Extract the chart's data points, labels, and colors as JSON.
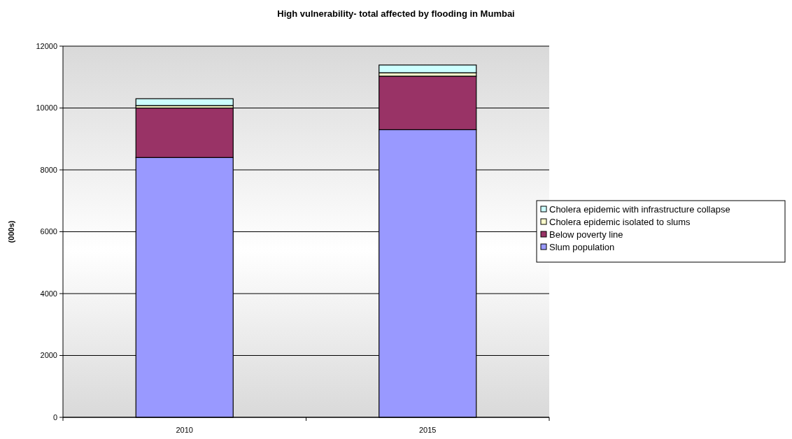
{
  "chart_data": {
    "type": "bar",
    "title": "High vulnerability-  total affected by flooding in Mumbai",
    "ylabel": "(000s)",
    "categories": [
      "2010",
      "2015"
    ],
    "stacked": true,
    "series": [
      {
        "name": "Slum population",
        "color": "#9999ff",
        "values": [
          8400,
          9300
        ]
      },
      {
        "name": "Below poverty line",
        "color": "#993366",
        "values": [
          1600,
          1730
        ]
      },
      {
        "name": "Cholera epidemic isolated to slums",
        "color": "#ffffcc",
        "values": [
          80,
          110
        ]
      },
      {
        "name": "Cholera epidemic with infrastructure collapse",
        "color": "#ccffff",
        "values": [
          220,
          250
        ]
      }
    ],
    "ylim": [
      0,
      12000
    ],
    "yticks": [
      0,
      2000,
      4000,
      6000,
      8000,
      10000,
      12000
    ],
    "grid": "y",
    "legend": "right"
  }
}
